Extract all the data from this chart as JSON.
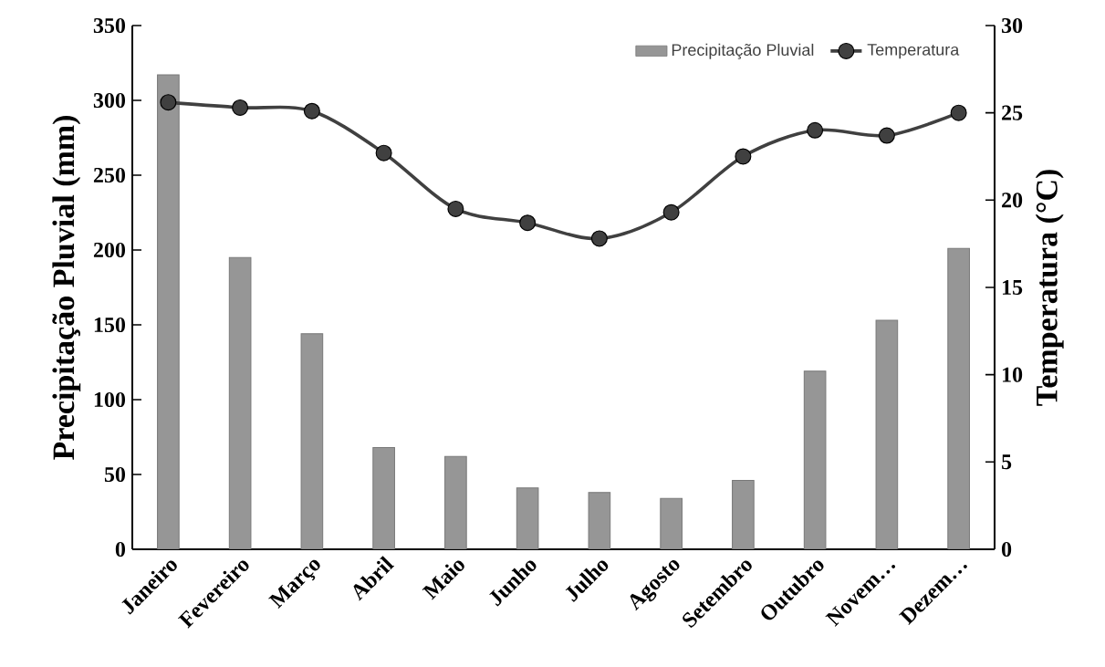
{
  "chart_data": {
    "type": "bar",
    "categories": [
      "Janeiro",
      "Fevereiro",
      "Março",
      "Abril",
      "Maio",
      "Junho",
      "Julho",
      "Agosto",
      "Setembro",
      "Outubro",
      "Novem…",
      "Dezem…"
    ],
    "ylabel": "Precipitação Pluvial (mm)",
    "y2label": "Temperatura (°C)",
    "ylim": [
      0,
      350
    ],
    "yticks": [
      0,
      50,
      100,
      150,
      200,
      250,
      300,
      350
    ],
    "y2lim": [
      0,
      30
    ],
    "y2ticks": [
      0,
      5,
      10,
      15,
      20,
      25,
      30
    ],
    "legend": "top right",
    "marker": "circle",
    "series": [
      {
        "name": "Precipitação Pluvial",
        "color": "#969696",
        "values": [
          317,
          195,
          144,
          68,
          62,
          41,
          38,
          34,
          46,
          119,
          153,
          201
        ]
      },
      {
        "name": "Temperatura",
        "type": "line",
        "axis": "y2",
        "color": "#404040",
        "values": [
          25.6,
          25.3,
          25.1,
          22.7,
          19.5,
          18.7,
          17.8,
          19.3,
          22.5,
          24.0,
          23.7,
          25.0
        ]
      }
    ]
  }
}
